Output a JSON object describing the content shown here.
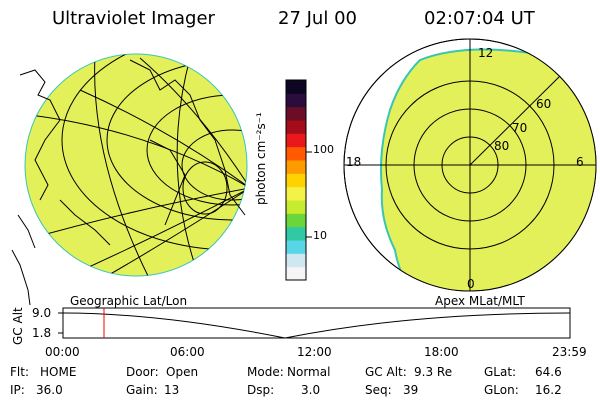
{
  "header": {
    "instrument": "Ultraviolet Imager",
    "date": "27 Jul 00",
    "time": "02:07:04 UT"
  },
  "colorbar": {
    "unit_label": "photon cm⁻²s⁻¹",
    "tick_labels": [
      "100",
      "10"
    ],
    "colors": [
      "#f5f5f5",
      "#cfe7f0",
      "#58d5e6",
      "#31c9a3",
      "#6ad63c",
      "#c7eb2f",
      "#f3f247",
      "#ffd200",
      "#ff9a00",
      "#ff5a00",
      "#e8181c",
      "#a50c1a",
      "#6b0d24",
      "#2b0d3d",
      "#0d0623"
    ]
  },
  "left_panel": {
    "caption": "Geographic Lat/Lon",
    "image_color": "#e4f05a"
  },
  "right_panel": {
    "caption": "Apex MLat/MLT",
    "mlt_labels": {
      "top": "12",
      "left": "18",
      "right": "6",
      "bottom": "0"
    },
    "lat_labels": [
      "60",
      "70",
      "80"
    ],
    "image_color": "#e4f05a",
    "edge_color": "#38c6b3"
  },
  "altitude_plot": {
    "ylabel": "GC Alt",
    "y_ticks": [
      "9.0",
      "1.8"
    ],
    "x_ticks": [
      "00:00",
      "06:00",
      "12:00",
      "18:00",
      "23:59"
    ],
    "current_time_marker_color": "#ff0000"
  },
  "status": {
    "flt_label": "Flt:",
    "flt_value": "HOME",
    "door_label": "Door:",
    "door_value": "Open",
    "mode_label": "Mode:",
    "mode_value": "Normal",
    "gcalt_label": "GC Alt:",
    "gcalt_value": "9.3 Re",
    "glat_label": "GLat:",
    "glat_value": "64.6",
    "ip_label": "IP:",
    "ip_value": "36.0",
    "gain_label": "Gain:",
    "gain_value": "13",
    "dsp_label": "Dsp:",
    "dsp_value": "3.0",
    "seq_label": "Seq:",
    "seq_value": "39",
    "glon_label": "GLon:",
    "glon_value": "16.2"
  }
}
